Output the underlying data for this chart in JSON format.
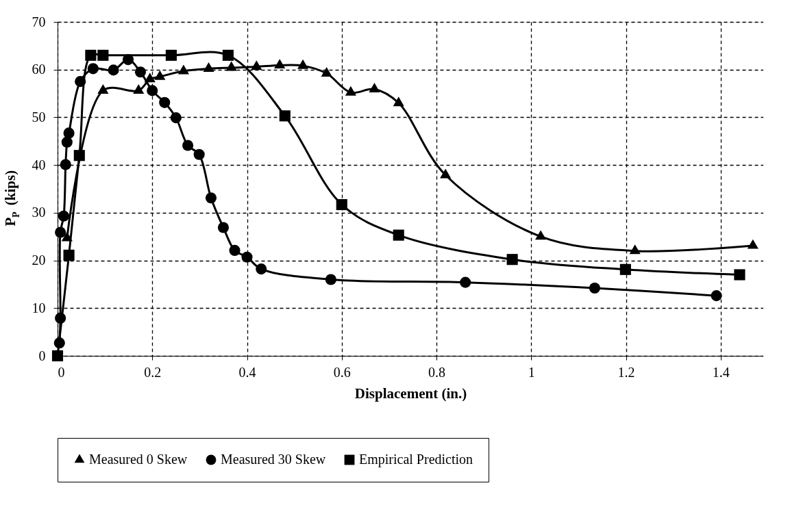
{
  "chart_data": {
    "type": "line",
    "xlabel": "Displacement (in.)",
    "ylabel": "P$_{P}$ (kips)",
    "xlim": [
      0,
      1.49
    ],
    "xticks": [
      0,
      0.2,
      0.4,
      0.6,
      0.8,
      1,
      1.2,
      1.4
    ],
    "ylim": [
      0,
      70
    ],
    "yticks": [
      0,
      10,
      20,
      30,
      40,
      50,
      60,
      70
    ],
    "grid": true,
    "legend": "bottom",
    "line_style": "solid",
    "series": [
      {
        "name": "Measured 0 Skew",
        "color": "#000000",
        "marker": "triangle",
        "x": [
          0.02,
          0.096,
          0.171,
          0.195,
          0.216,
          0.266,
          0.319,
          0.367,
          0.42,
          0.469,
          0.518,
          0.568,
          0.619,
          0.669,
          0.72,
          0.819,
          1.02,
          1.219,
          1.468
        ],
        "values": [
          24.7,
          55.6,
          55.6,
          58.0,
          58.5,
          59.7,
          60.2,
          60.4,
          60.6,
          60.9,
          60.8,
          59.2,
          55.2,
          55.9,
          53.0,
          37.9,
          25.0,
          22.0,
          23.1
        ]
      },
      {
        "name": "Measured 30 Skew",
        "color": "#000000",
        "marker": "circle",
        "x": [
          0.004,
          0.006,
          0.006,
          0.013,
          0.017,
          0.02,
          0.024,
          0.048,
          0.075,
          0.118,
          0.149,
          0.175,
          0.2,
          0.226,
          0.25,
          0.275,
          0.299,
          0.324,
          0.35,
          0.374,
          0.4,
          0.43,
          0.577,
          0.861,
          1.134,
          1.391
        ],
        "values": [
          2.7,
          7.9,
          25.9,
          29.3,
          40.1,
          44.8,
          46.7,
          57.5,
          60.2,
          59.9,
          62.1,
          59.5,
          55.6,
          53.1,
          49.9,
          44.1,
          42.2,
          33.1,
          26.9,
          22.1,
          20.7,
          18.2,
          16.0,
          15.4,
          14.2,
          12.6
        ]
      },
      {
        "name": "Empirical Prediction",
        "color": "#000000",
        "marker": "square",
        "x": [
          0,
          0.024,
          0.046,
          0.07,
          0.096,
          0.24,
          0.36,
          0.48,
          0.6,
          0.72,
          0.96,
          1.199,
          1.44
        ],
        "values": [
          0,
          21.1,
          42.0,
          63.0,
          63.0,
          63.0,
          63.0,
          50.3,
          31.7,
          25.3,
          20.2,
          18.1,
          17.0
        ]
      }
    ]
  }
}
